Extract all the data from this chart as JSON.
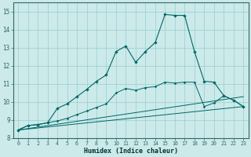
{
  "xlabel": "Humidex (Indice chaleur)",
  "bg_color": "#cceaea",
  "grid_color": "#99cccc",
  "line_color": "#006666",
  "xlim": [
    -0.5,
    23.5
  ],
  "ylim": [
    8.0,
    15.5
  ],
  "yticks": [
    8,
    9,
    10,
    11,
    12,
    13,
    14,
    15
  ],
  "xticks": [
    0,
    1,
    2,
    3,
    4,
    5,
    6,
    7,
    8,
    9,
    10,
    11,
    12,
    13,
    14,
    15,
    16,
    17,
    18,
    19,
    20,
    21,
    22,
    23
  ],
  "series": [
    {
      "x": [
        0,
        23
      ],
      "y": [
        8.45,
        9.75
      ]
    },
    {
      "x": [
        0,
        23
      ],
      "y": [
        8.45,
        10.3
      ]
    },
    {
      "x": [
        0,
        1,
        2,
        3,
        4,
        5,
        6,
        7,
        8,
        9,
        10,
        11,
        12,
        13,
        14,
        15,
        16,
        17,
        18,
        19,
        20,
        21,
        22,
        23
      ],
      "y": [
        8.45,
        8.7,
        8.75,
        8.85,
        8.95,
        9.1,
        9.3,
        9.5,
        9.7,
        9.9,
        10.5,
        10.75,
        10.65,
        10.8,
        10.85,
        11.1,
        11.05,
        11.1,
        11.1,
        9.75,
        9.95,
        10.35,
        10.1,
        9.75
      ]
    },
    {
      "x": [
        0,
        1,
        2,
        3,
        4,
        5,
        6,
        7,
        8,
        9,
        10,
        11,
        12,
        13,
        14,
        15,
        16,
        17,
        18,
        19,
        20,
        21,
        22,
        23
      ],
      "y": [
        8.45,
        8.7,
        8.75,
        8.85,
        9.65,
        9.9,
        10.3,
        10.7,
        11.15,
        11.5,
        12.8,
        13.1,
        12.2,
        12.8,
        13.3,
        14.85,
        14.8,
        14.8,
        12.8,
        11.15,
        11.1,
        10.35,
        10.1,
        9.75
      ]
    }
  ]
}
